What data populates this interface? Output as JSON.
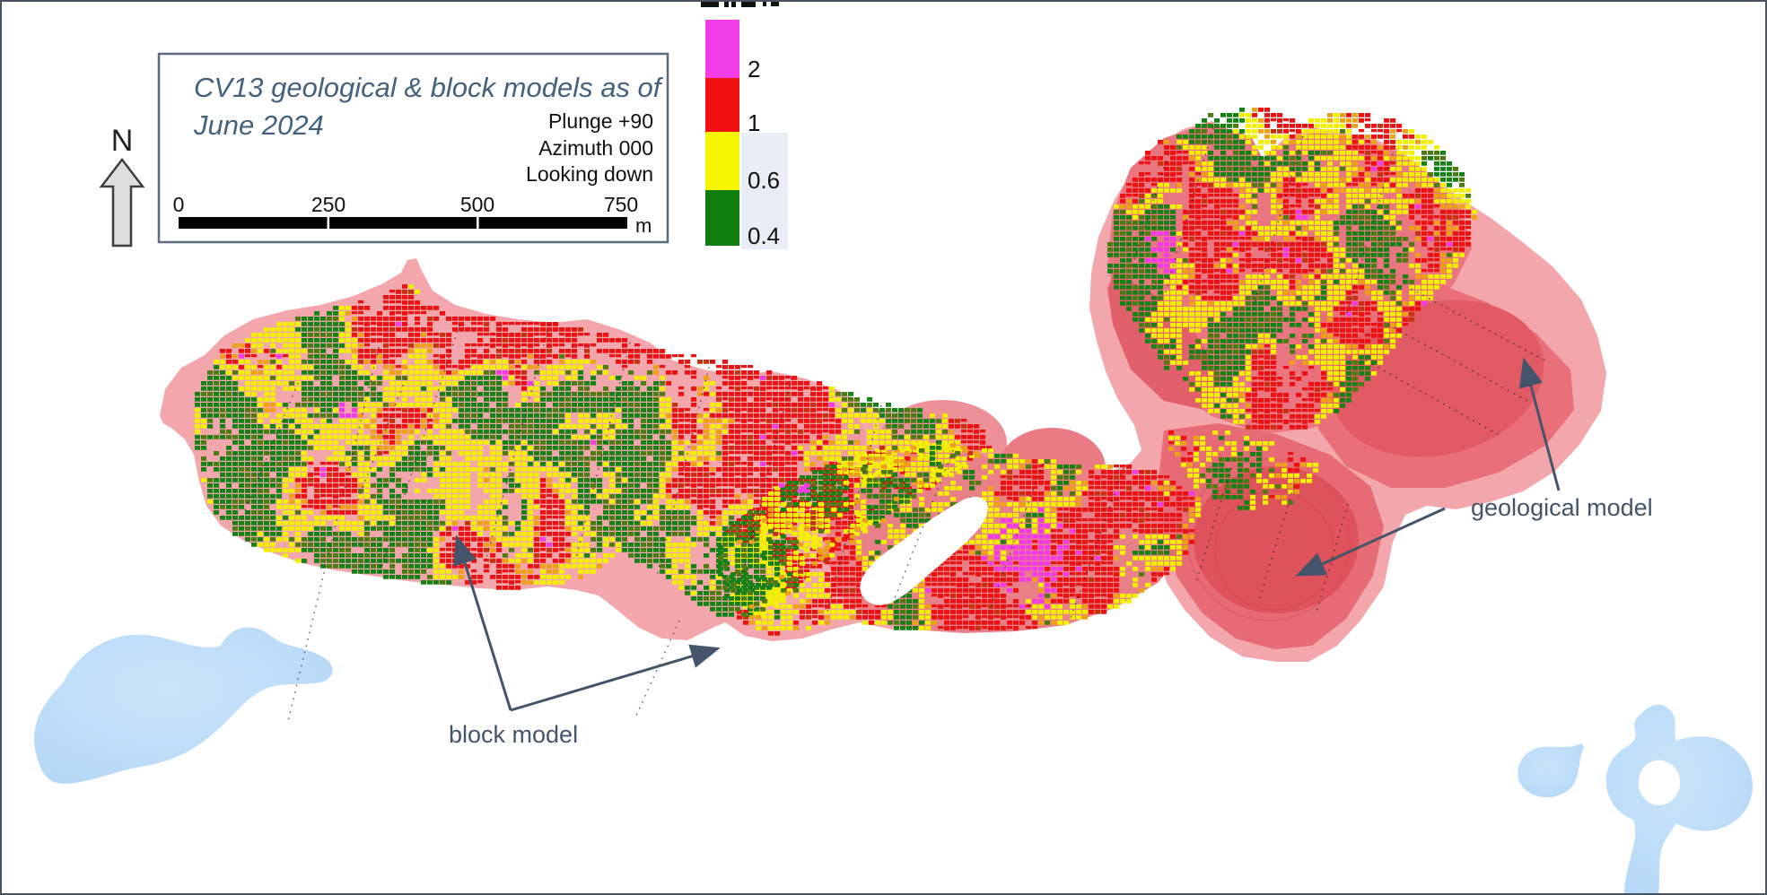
{
  "figure": {
    "title_line1": "CV13 geological & block models as of",
    "title_line2": "June 2024",
    "view_lines": [
      "Plunge +90",
      "Azimuth 000",
      "Looking down"
    ],
    "north_label": "N"
  },
  "scale_bar": {
    "ticks": [
      "0",
      "250",
      "500",
      "750"
    ],
    "unit": "m"
  },
  "legend": {
    "classes": [
      {
        "label": "2",
        "color": "#f23ce8"
      },
      {
        "label": "1",
        "color": "#f01010"
      },
      {
        "label": "0.6",
        "color": "#f5f500"
      },
      {
        "label": "0.4",
        "color": "#0e7e0e"
      }
    ]
  },
  "annotations": {
    "block_model": "block model",
    "geological_model": "geological model"
  },
  "map_data": {
    "type": "geological-plan-view",
    "grade_legend_thresholds": [
      0.4,
      0.6,
      1,
      2
    ],
    "scale_bar_m": [
      0,
      250,
      500,
      750
    ],
    "orientation": {
      "plunge": "+90",
      "azimuth": "000",
      "view": "Looking down"
    },
    "features": [
      "geological model outline (translucent pink/red)",
      "block model (coloured voxel mosaic)",
      "lakes (light blue)",
      "drill traces (dotted lines)"
    ]
  },
  "colors": {
    "geo_base": "#f3a7ad",
    "geo_mid": "#ee9097",
    "geo_dark": "#e97680",
    "geo_deep": "#e25a64",
    "geo_core": "#de525c",
    "lake": "#bdddf8",
    "annotation": "#44546a",
    "block_palette": {
      "green": "#168216",
      "olive": "#4e7a12",
      "yellow": "#f2ef00",
      "orange": "#efa115",
      "red": "#ee1111",
      "magenta": "#f23ae8",
      "darkred": "#c4320e"
    }
  }
}
